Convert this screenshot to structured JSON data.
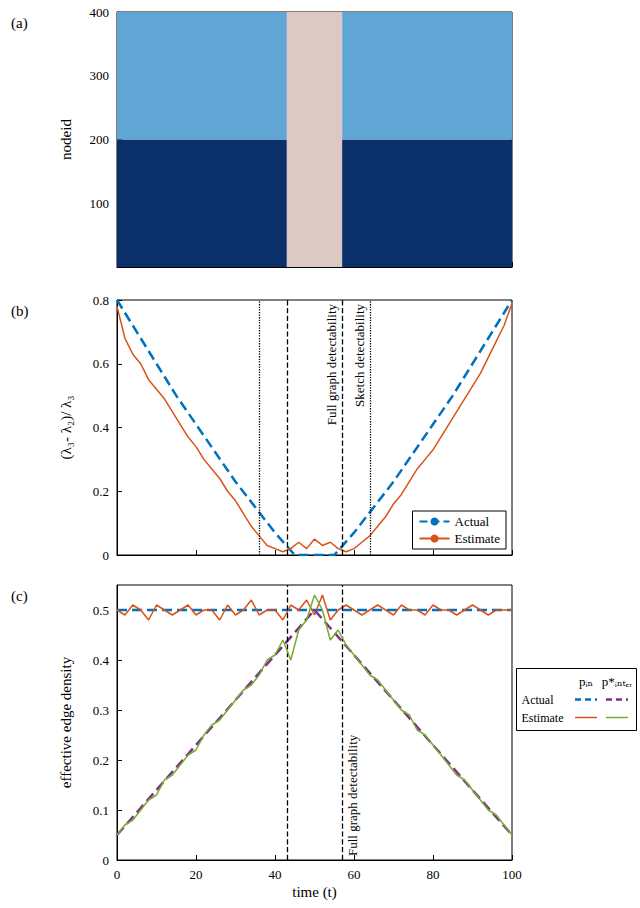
{
  "chart_data": [
    {
      "type": "heatmap",
      "title": "(a)",
      "y_label": "nodeid",
      "xlim": [
        0,
        100
      ],
      "xticks": [
        0,
        20,
        40,
        60,
        80,
        100
      ],
      "ylim": [
        0,
        400
      ],
      "yticks": [
        100,
        200,
        300,
        400
      ],
      "tick_labels": "y",
      "grid": false,
      "regions": [
        {
          "x": [
            0,
            43
          ],
          "y": [
            0,
            200
          ],
          "color": "#0a2f6b"
        },
        {
          "x": [
            0,
            43
          ],
          "y": [
            200,
            400
          ],
          "color": "#61a5d4"
        },
        {
          "x": [
            43,
            57
          ],
          "y": [
            0,
            400
          ],
          "color": "#dcc9c3"
        },
        {
          "x": [
            57,
            100
          ],
          "y": [
            0,
            200
          ],
          "color": "#0a2f6b"
        },
        {
          "x": [
            57,
            100
          ],
          "y": [
            200,
            400
          ],
          "color": "#61a5d4"
        }
      ]
    },
    {
      "type": "line",
      "title": "(b)",
      "y_label": "(λ₃- λ₂)/ λ₃",
      "xlim": [
        0,
        100
      ],
      "xticks": [
        0,
        20,
        40,
        60,
        80,
        100
      ],
      "ylim": [
        0,
        0.8
      ],
      "yticks": [
        0,
        0.2,
        0.4,
        0.6,
        0.8
      ],
      "tick_labels": "y",
      "grid": false,
      "legend": "lower right",
      "series": [
        {
          "name": "Actual",
          "color": "#0072bd",
          "line_style": "dashed",
          "x": [
            0,
            5,
            10,
            15,
            20,
            25,
            30,
            35,
            40,
            45,
            50,
            55,
            60,
            65,
            70,
            75,
            80,
            85,
            90,
            95,
            100
          ],
          "values": [
            0.8,
            0.7,
            0.6,
            0.5,
            0.41,
            0.32,
            0.23,
            0.15,
            0.07,
            0.0,
            0.0,
            0.0,
            0.07,
            0.15,
            0.23,
            0.32,
            0.41,
            0.5,
            0.6,
            0.7,
            0.8
          ]
        },
        {
          "name": "Estimate",
          "color": "#d95319",
          "line_style": "solid",
          "x": [
            0,
            2,
            4,
            6,
            8,
            10,
            12,
            14,
            16,
            18,
            20,
            22,
            24,
            26,
            28,
            30,
            32,
            34,
            36,
            38,
            40,
            42,
            44,
            46,
            48,
            50,
            52,
            54,
            56,
            58,
            60,
            62,
            64,
            66,
            68,
            70,
            72,
            74,
            76,
            78,
            80,
            82,
            84,
            86,
            88,
            90,
            92,
            94,
            96,
            98,
            100
          ],
          "values": [
            0.78,
            0.68,
            0.63,
            0.6,
            0.55,
            0.52,
            0.49,
            0.45,
            0.41,
            0.37,
            0.34,
            0.3,
            0.27,
            0.24,
            0.2,
            0.17,
            0.13,
            0.09,
            0.06,
            0.03,
            0.02,
            0.01,
            0.02,
            0.04,
            0.02,
            0.05,
            0.03,
            0.04,
            0.02,
            0.01,
            0.02,
            0.04,
            0.06,
            0.09,
            0.12,
            0.16,
            0.19,
            0.23,
            0.27,
            0.3,
            0.33,
            0.37,
            0.41,
            0.45,
            0.49,
            0.53,
            0.57,
            0.62,
            0.67,
            0.72,
            0.79
          ]
        }
      ],
      "annotations": [
        {
          "x": 43,
          "line_style": "dashed"
        },
        {
          "x": 57,
          "line_style": "dashed",
          "text": "Full graph detectability"
        },
        {
          "x": 36,
          "line_style": "dotted"
        },
        {
          "x": 64,
          "line_style": "dotted",
          "text": "Sketch detectability"
        }
      ]
    },
    {
      "type": "line",
      "title": "(c)",
      "x_label": "time (t)",
      "y_label": "effective edge density",
      "xlim": [
        0,
        100
      ],
      "xticks": [
        0,
        20,
        40,
        60,
        80,
        100
      ],
      "ylim": [
        0,
        0.55
      ],
      "yticks": [
        0,
        0.1,
        0.2,
        0.3,
        0.4,
        0.5
      ],
      "grid": false,
      "legend": "right",
      "series": [
        {
          "group": "pᵢₙ",
          "name": "Actual",
          "color": "#0072bd",
          "line_style": "dashed",
          "x": [
            0,
            100
          ],
          "values": [
            0.5,
            0.5
          ]
        },
        {
          "group": "pᵢₙ",
          "name": "Estimate",
          "color": "#d95319",
          "line_style": "solid",
          "x": [
            0,
            2,
            4,
            6,
            8,
            10,
            12,
            14,
            16,
            18,
            20,
            22,
            24,
            26,
            28,
            30,
            32,
            34,
            36,
            38,
            40,
            42,
            44,
            46,
            48,
            50,
            52,
            54,
            56,
            58,
            60,
            62,
            64,
            66,
            68,
            70,
            72,
            74,
            76,
            78,
            80,
            82,
            84,
            86,
            88,
            90,
            92,
            94,
            96,
            98,
            100
          ],
          "values": [
            0.5,
            0.49,
            0.51,
            0.5,
            0.48,
            0.51,
            0.5,
            0.49,
            0.5,
            0.51,
            0.49,
            0.5,
            0.5,
            0.48,
            0.51,
            0.49,
            0.5,
            0.52,
            0.49,
            0.5,
            0.5,
            0.48,
            0.51,
            0.5,
            0.52,
            0.49,
            0.53,
            0.48,
            0.5,
            0.51,
            0.5,
            0.49,
            0.5,
            0.51,
            0.5,
            0.49,
            0.51,
            0.5,
            0.5,
            0.49,
            0.51,
            0.5,
            0.5,
            0.49,
            0.5,
            0.51,
            0.5,
            0.49,
            0.5,
            0.5,
            0.5
          ]
        },
        {
          "group": "p*ᵢₙₜₑᵣ",
          "name": "Actual",
          "color": "#7e2f8e",
          "line_style": "dashed",
          "x": [
            0,
            50,
            100
          ],
          "values": [
            0.05,
            0.5,
            0.05
          ]
        },
        {
          "group": "p*ᵢₙₜₑᵣ",
          "name": "Estimate",
          "color": "#77ac30",
          "line_style": "solid",
          "x": [
            0,
            2,
            4,
            6,
            8,
            10,
            12,
            14,
            16,
            18,
            20,
            22,
            24,
            26,
            28,
            30,
            32,
            34,
            36,
            38,
            40,
            42,
            44,
            46,
            48,
            50,
            52,
            54,
            56,
            58,
            60,
            62,
            64,
            66,
            68,
            70,
            72,
            74,
            76,
            78,
            80,
            82,
            84,
            86,
            88,
            90,
            92,
            94,
            96,
            98,
            100
          ],
          "values": [
            0.05,
            0.07,
            0.08,
            0.1,
            0.12,
            0.13,
            0.16,
            0.17,
            0.19,
            0.21,
            0.22,
            0.25,
            0.27,
            0.28,
            0.3,
            0.32,
            0.34,
            0.35,
            0.37,
            0.4,
            0.41,
            0.44,
            0.4,
            0.46,
            0.48,
            0.53,
            0.5,
            0.44,
            0.46,
            0.43,
            0.41,
            0.39,
            0.37,
            0.36,
            0.34,
            0.32,
            0.3,
            0.29,
            0.26,
            0.25,
            0.23,
            0.21,
            0.19,
            0.17,
            0.16,
            0.14,
            0.12,
            0.1,
            0.09,
            0.07,
            0.05
          ]
        }
      ],
      "annotations": [
        {
          "x": 43,
          "line_style": "dashed"
        },
        {
          "x": 57,
          "line_style": "dashed",
          "text": "Full graph detectability"
        }
      ]
    }
  ]
}
